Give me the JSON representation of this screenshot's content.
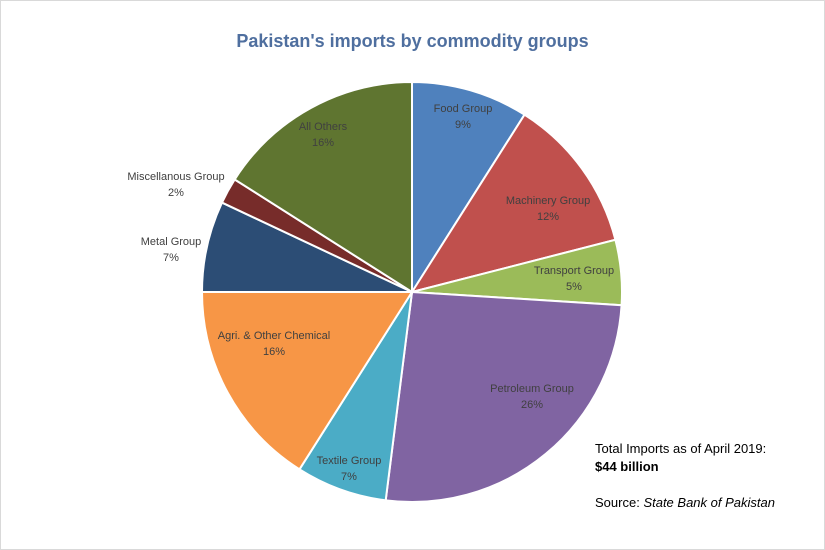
{
  "chart_data": {
    "type": "pie",
    "title": "Pakistan's imports by commodity groups",
    "slices": [
      {
        "label": "Food Group",
        "value": 9,
        "value_label": "9%",
        "color": "#4f81bd"
      },
      {
        "label": "Machinery Group",
        "value": 12,
        "value_label": "12%",
        "color": "#c0504d"
      },
      {
        "label": "Transport Group",
        "value": 5,
        "value_label": "5%",
        "color": "#9bbb59"
      },
      {
        "label": "Petroleum Group",
        "value": 26,
        "value_label": "26%",
        "color": "#8064a2"
      },
      {
        "label": "Textile Group",
        "value": 7,
        "value_label": "7%",
        "color": "#4bacc6"
      },
      {
        "label": "Agri. & Other Chemical",
        "value": 16,
        "value_label": "16%",
        "color": "#f79646"
      },
      {
        "label": "Metal Group",
        "value": 7,
        "value_label": "7%",
        "color": "#2c4d75"
      },
      {
        "label": "Miscellanous Group",
        "value": 2,
        "value_label": "2%",
        "color": "#772c2a"
      },
      {
        "label": "All Others",
        "value": 16,
        "value_label": "16%",
        "color": "#5f7530"
      }
    ]
  },
  "note": {
    "total_label": "Total Imports as of April 2019:",
    "total_value": "$44 billion",
    "source_label": "Source:",
    "source_name": "State Bank of Pakistan"
  }
}
